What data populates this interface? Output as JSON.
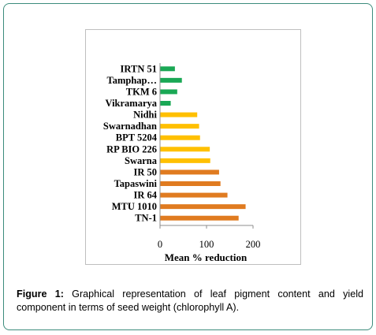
{
  "chart_data": {
    "type": "bar",
    "orientation": "horizontal",
    "xlabel": "Mean % reduction",
    "xlim": [
      0,
      200
    ],
    "xticks": [
      0,
      100,
      200
    ],
    "categories": [
      "IRTN 51",
      "Tamphap…",
      "TKM 6",
      "Vikramarya",
      "Nidhi",
      "Swarnadhan",
      "BPT 5204",
      "RP BIO 226",
      "Swarna",
      "IR 50",
      "Tapaswini",
      "IR 64",
      "MTU 1010",
      "TN-1"
    ],
    "values": [
      32,
      47,
      37,
      23,
      80,
      84,
      86,
      107,
      108,
      127,
      130,
      145,
      184,
      169
    ],
    "colors": [
      "#1aa855",
      "#1aa855",
      "#1aa855",
      "#1aa855",
      "#ffc000",
      "#ffc000",
      "#ffc000",
      "#ffc000",
      "#ffc000",
      "#e07b20",
      "#e07b20",
      "#e07b20",
      "#e07b20",
      "#e07b20"
    ]
  },
  "caption": {
    "label": "Figure 1:",
    "text": " Graphical representation of leaf pigment content and yield component in terms of seed weight (chlorophyll A)."
  }
}
